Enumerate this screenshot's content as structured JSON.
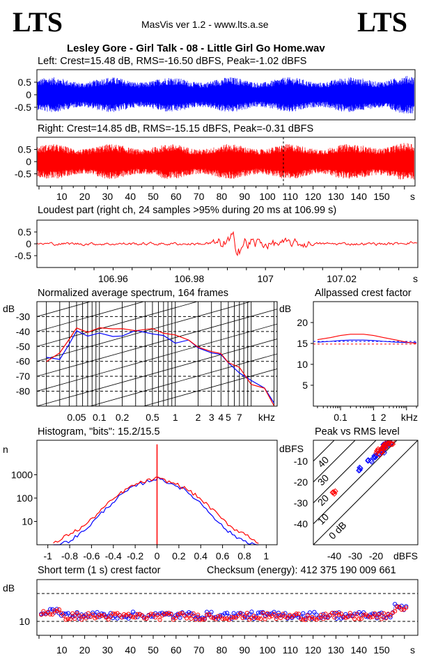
{
  "logo": "LTS",
  "app_title": "MasVis ver 1.2 - www.lts.a.se",
  "file_title": "Lesley Gore - Girl Talk - 08 - Little Girl Go Home.wav",
  "left_caption": "Left: Crest=15.48 dB, RMS=-16.50 dBFS, Peak=-1.02 dBFS",
  "right_caption": "Right: Crest=14.85 dB, RMS=-15.15 dBFS, Peak=-0.31 dBFS",
  "loudest_caption": "Loudest part (right ch, 24 samples >95% during 20 ms at 106.99 s)",
  "spectrum_caption": "Normalized average spectrum, 164 frames",
  "allpass_caption": "Allpassed crest factor",
  "histogram_caption": "Histogram, \"bits\": 15.2/15.5",
  "peakrms_caption": "Peak vs RMS level",
  "shortterm_caption": "Short term (1 s) crest factor",
  "checksum_caption": "Checksum (energy):   412 375 190 009 661",
  "colors": {
    "left": "#0000ff",
    "right": "#ff0000"
  },
  "chart_data": [
    {
      "type": "line",
      "name": "left-waveform",
      "ylim": [
        -1,
        1
      ],
      "yticks": [
        "0.5",
        "0",
        "-0.5"
      ],
      "duration_s": 160,
      "envelope": 0.7
    },
    {
      "type": "line",
      "name": "right-waveform",
      "ylim": [
        -1,
        1
      ],
      "yticks": [
        "0.5",
        "0",
        "-0.5"
      ],
      "marker_s": 107,
      "xticks": [
        "10",
        "20",
        "30",
        "40",
        "50",
        "60",
        "70",
        "80",
        "90",
        "100",
        "110",
        "120",
        "130",
        "140",
        "150"
      ],
      "xunit": "s",
      "envelope": 0.72
    },
    {
      "type": "line",
      "name": "loudest-part",
      "ylim": [
        -1,
        1
      ],
      "yticks": [
        "0.5",
        "0",
        "-0.5"
      ],
      "xlim": [
        106.94,
        107.04
      ],
      "xticks": [
        "106.96",
        "106.98",
        "107",
        "107.02"
      ],
      "xunit": "s"
    },
    {
      "type": "line",
      "name": "spectrum",
      "ylabel": "dB",
      "ylim": [
        -90,
        -20
      ],
      "yticks": [
        "-30",
        "-40",
        "-50",
        "-60",
        "-70",
        "-80"
      ],
      "xticks": [
        "0.05",
        "0.1",
        "0.2",
        "0.5",
        "1",
        "2",
        "3",
        "4",
        "5",
        "7"
      ],
      "xunit": "kHz",
      "freq_khz": [
        0.02,
        0.03,
        0.04,
        0.05,
        0.07,
        0.1,
        0.15,
        0.2,
        0.3,
        0.5,
        0.7,
        1,
        1.5,
        2,
        3,
        4,
        5,
        7,
        10,
        15,
        20
      ],
      "series": [
        {
          "name": "left",
          "values": [
            -59,
            -57,
            -47,
            -40,
            -44,
            -41,
            -44,
            -43,
            -40,
            -42,
            -44,
            -46,
            -47,
            -51,
            -55,
            -57,
            -62,
            -67,
            -73,
            -79,
            -86
          ]
        },
        {
          "name": "right",
          "values": [
            -60,
            -56,
            -45,
            -38,
            -40,
            -37,
            -39,
            -39,
            -38,
            -39,
            -41,
            -44,
            -45,
            -49,
            -54,
            -56,
            -61,
            -66,
            -74,
            -80,
            -88
          ]
        }
      ]
    },
    {
      "type": "line",
      "name": "allpassed-crest",
      "ylabel": "dB",
      "ylim": [
        0,
        25
      ],
      "yticks": [
        "20",
        "15",
        "10",
        "5"
      ],
      "xticks": [
        "0.1",
        "1",
        "2"
      ],
      "xunit": "kHz",
      "freq_khz": [
        0.02,
        0.05,
        0.1,
        0.2,
        0.5,
        1,
        2,
        5,
        10,
        20
      ],
      "series": [
        {
          "name": "left",
          "values": [
            15.3,
            15.5,
            15.7,
            15.8,
            15.8,
            15.7,
            15.5,
            15.3,
            15.2,
            15.2
          ]
        },
        {
          "name": "right",
          "values": [
            15.9,
            16.4,
            16.9,
            17.2,
            17.2,
            16.9,
            16.4,
            15.8,
            15.3,
            15.0
          ]
        }
      ],
      "ref_lines": [
        15.48,
        14.85
      ]
    },
    {
      "type": "line",
      "name": "histogram",
      "ylabel": "n",
      "yscale": "log",
      "yticks": [
        "1000",
        "100",
        "10"
      ],
      "xlim": [
        -1.1,
        1.1
      ],
      "xticks": [
        "-1",
        "-0.8",
        "-0.6",
        "-0.4",
        "-0.2",
        "0",
        "0.2",
        "0.4",
        "0.6",
        "0.8",
        "1"
      ],
      "x": [
        -0.9,
        -0.8,
        -0.7,
        -0.6,
        -0.5,
        -0.4,
        -0.3,
        -0.2,
        -0.1,
        0,
        0.1,
        0.2,
        0.3,
        0.4,
        0.5,
        0.6,
        0.7,
        0.8,
        0.9
      ],
      "series": [
        {
          "name": "left",
          "values": [
            1,
            1.5,
            3,
            8,
            25,
            70,
            170,
            330,
            500,
            700,
            480,
            310,
            150,
            60,
            20,
            6,
            2.5,
            1.5,
            1
          ]
        },
        {
          "name": "right",
          "values": [
            1.5,
            3,
            5,
            12,
            35,
            90,
            210,
            380,
            540,
            700,
            520,
            360,
            200,
            90,
            35,
            12,
            5,
            3,
            1.5
          ]
        }
      ],
      "peak": 20000
    },
    {
      "type": "scatter",
      "name": "peak-vs-rms",
      "xlabel": "dBFS",
      "ylabel": "dBFS",
      "xlim": [
        -50,
        0
      ],
      "ylim": [
        -50,
        0
      ],
      "xticks": [
        "-40",
        "-30",
        "-20"
      ],
      "yticks": [
        "-10",
        "-20",
        "-30",
        "-40"
      ],
      "diag_labels": [
        "40",
        "30",
        "20",
        "10",
        "0 dB"
      ],
      "series": [
        {
          "name": "left",
          "points": [
            [
              -28,
              -14
            ],
            [
              -23,
              -10
            ],
            [
              -20,
              -8
            ],
            [
              -18,
              -6
            ],
            [
              -17,
              -5
            ],
            [
              -16,
              -3
            ],
            [
              -15,
              -2
            ],
            [
              -14,
              -1.5
            ]
          ]
        },
        {
          "name": "right",
          "points": [
            [
              -40,
              -25
            ],
            [
              -19,
              -6
            ],
            [
              -17,
              -4
            ],
            [
              -16,
              -3
            ],
            [
              -15,
              -2
            ],
            [
              -14,
              -1
            ],
            [
              -13,
              -1
            ],
            [
              -18,
              -5
            ]
          ]
        }
      ]
    },
    {
      "type": "scatter",
      "name": "short-term-crest",
      "ylabel": "dB",
      "ytick_label": "10",
      "ylim": [
        5,
        25
      ],
      "ref_lines": [
        10,
        20
      ],
      "xticks": [
        "10",
        "20",
        "30",
        "40",
        "50",
        "60",
        "70",
        "80",
        "90",
        "100",
        "110",
        "120",
        "130",
        "140",
        "150"
      ],
      "xunit": "s",
      "duration_s": 164,
      "mean_left": 12.2,
      "mean_right": 11.8
    }
  ]
}
